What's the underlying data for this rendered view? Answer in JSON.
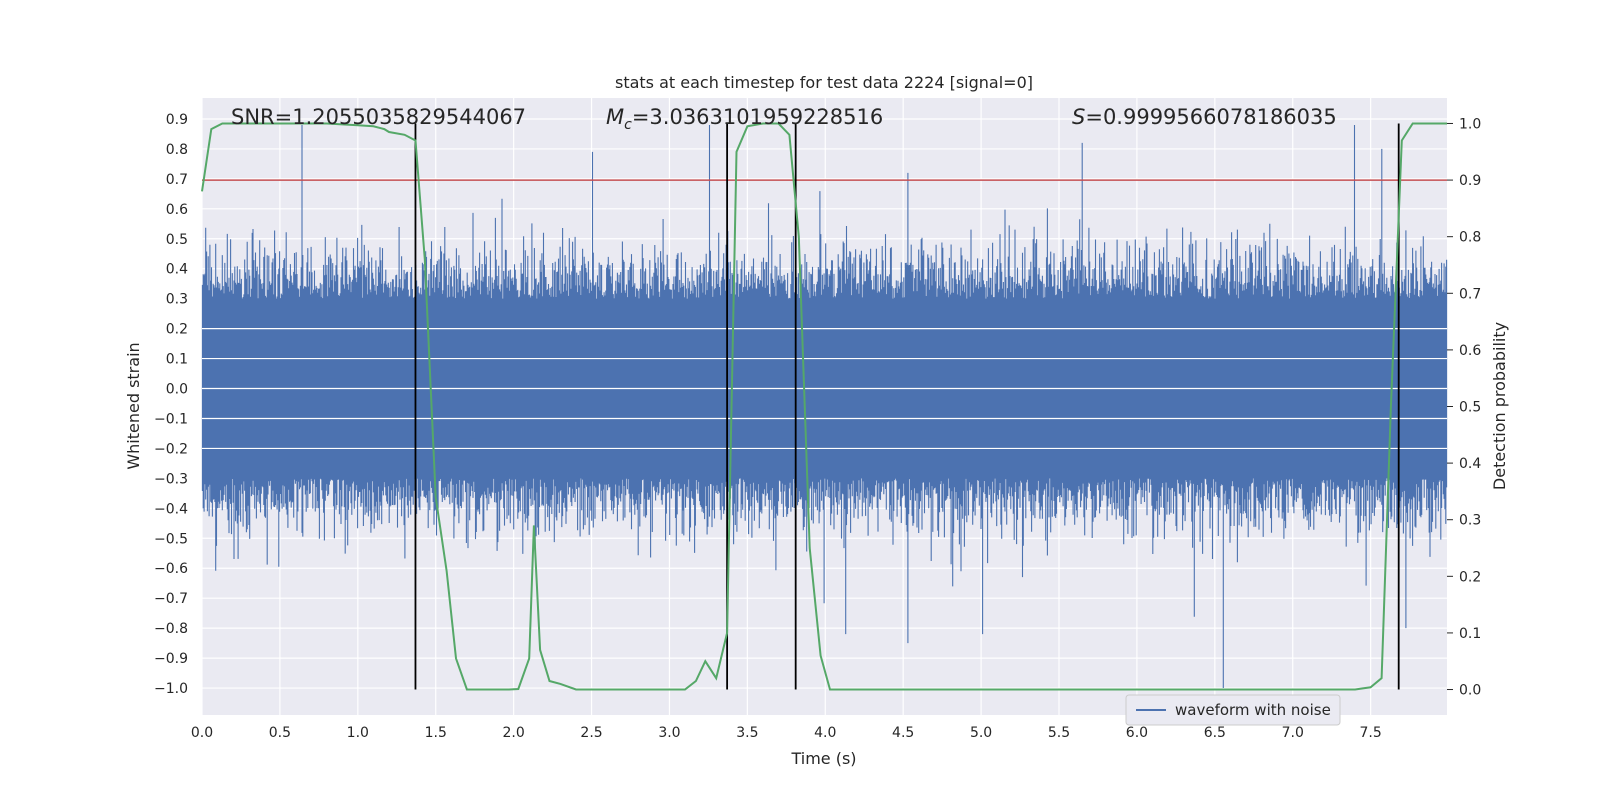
{
  "chart_data": {
    "type": "line",
    "title": "stats at each timestep for test data 2224 [signal=0]",
    "xlabel": "Time (s)",
    "ylabel": "Whitened strain",
    "y2label": "Detection probability",
    "xlim": [
      0.0,
      7.99
    ],
    "ylim": [
      -1.09,
      0.97
    ],
    "y2lim": [
      -0.045,
      1.045
    ],
    "xticks": [
      "0.0",
      "0.5",
      "1.0",
      "1.5",
      "2.0",
      "2.5",
      "3.0",
      "3.5",
      "4.0",
      "4.5",
      "5.0",
      "5.5",
      "6.0",
      "6.5",
      "7.0",
      "7.5"
    ],
    "yticks": [
      "0.9",
      "0.8",
      "0.7",
      "0.6",
      "0.5",
      "0.4",
      "0.3",
      "0.2",
      "0.1",
      "0.0",
      "-0.1",
      "-0.2",
      "-0.3",
      "-0.4",
      "-0.5",
      "-0.6",
      "-0.7",
      "-0.8",
      "-0.9",
      "-1.0"
    ],
    "y2ticks": [
      "1.0",
      "0.9",
      "0.8",
      "0.7",
      "0.6",
      "0.5",
      "0.4",
      "0.3",
      "0.2",
      "0.1",
      "0.0"
    ],
    "grid": true,
    "legend_placement": "lower-right",
    "annotations": {
      "snr": "SNR=1.2055035829544067",
      "mc_symbol": "M",
      "mc_sub": "c",
      "mc_value": "=3.0363101959228516",
      "s_symbol": "S",
      "s_value": "=0.9999566078186035"
    },
    "threshold": {
      "axis": "right",
      "value": 0.9,
      "color": "#c44e52"
    },
    "vlines": [
      1.37,
      3.37,
      3.81,
      7.68
    ],
    "series": [
      {
        "name": "waveform with noise",
        "axis": "left",
        "color": "#4c72b0",
        "kind": "noise",
        "notes": "dense whitened strain signal, mostly within about -0.45 to 0.5, spikes up to 0.88 and down to -1.0"
      },
      {
        "axis": "right",
        "color": "#55a868",
        "x": [
          0.0,
          0.06,
          0.13,
          0.2,
          0.4,
          0.6,
          0.8,
          1.0,
          1.1,
          1.17,
          1.2,
          1.3,
          1.37,
          1.43,
          1.5,
          1.57,
          1.63,
          1.7,
          1.77,
          1.83,
          1.9,
          1.97,
          2.03,
          2.1,
          2.13,
          2.17,
          2.23,
          2.3,
          2.4,
          2.5,
          2.7,
          2.9,
          3.1,
          3.17,
          3.23,
          3.3,
          3.37,
          3.43,
          3.5,
          3.6,
          3.7,
          3.77,
          3.83,
          3.9,
          3.97,
          4.03,
          4.1,
          4.3,
          4.6,
          5.0,
          5.3,
          5.6,
          5.9,
          6.2,
          6.5,
          6.8,
          7.0,
          7.2,
          7.4,
          7.5,
          7.57,
          7.63,
          7.7,
          7.77,
          7.83,
          7.9,
          7.99
        ],
        "values": [
          0.88,
          0.99,
          1.0,
          1.0,
          1.0,
          1.0,
          1.0,
          0.997,
          0.995,
          0.99,
          0.985,
          0.98,
          0.97,
          0.76,
          0.34,
          0.21,
          0.055,
          0.0,
          0.0,
          0.0,
          0.0,
          0.0,
          0.001,
          0.055,
          0.29,
          0.07,
          0.015,
          0.01,
          0.0,
          0.0,
          0.0,
          0.0,
          0.0,
          0.015,
          0.05,
          0.02,
          0.1,
          0.95,
          0.995,
          1.0,
          1.0,
          0.98,
          0.8,
          0.25,
          0.06,
          0.0,
          0.0,
          0.0,
          0.0,
          0.0,
          0.0,
          0.0,
          0.0,
          0.0,
          0.0,
          0.0,
          0.0,
          0.0,
          0.0,
          0.004,
          0.02,
          0.5,
          0.97,
          1.0,
          1.0,
          1.0,
          1.0
        ]
      }
    ]
  }
}
